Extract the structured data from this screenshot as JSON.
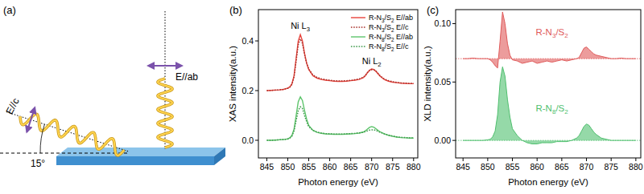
{
  "diagram": {
    "panel_label": "(a)",
    "beam_c": {
      "label": "E//c"
    },
    "beam_ab": {
      "label": "E//ab"
    },
    "angle": {
      "label": "15°"
    }
  },
  "chart_data": [
    {
      "type": "line",
      "title": "(b)",
      "xlabel": "Photon energy (eV)",
      "ylabel": "XAS intensity(a.u.)",
      "xlim": [
        843,
        881
      ],
      "ylim": [
        -0.071,
        0.526
      ],
      "xticks": [
        845,
        850,
        855,
        860,
        865,
        870,
        875,
        880
      ],
      "yticks": [
        {
          "value": 0,
          "label": "0.0"
        },
        0.2,
        0.4
      ],
      "grid": false,
      "legend": "upper right",
      "annotations": [
        {
          "text": "Ni L3",
          "x": 853,
          "y": 0.45
        },
        {
          "text": "Ni L2",
          "x": 870,
          "y": 0.305
        }
      ],
      "x": [
        845,
        846,
        847,
        848,
        849,
        850,
        850.5,
        851,
        851.5,
        852,
        852.5,
        853,
        853.5,
        854,
        854.5,
        855,
        856,
        857,
        858,
        859,
        860,
        861,
        862,
        863,
        864,
        865,
        866,
        867,
        868,
        868.5,
        869,
        869.5,
        870,
        870.5,
        871,
        871.5,
        872,
        873,
        874,
        875,
        876,
        877,
        878,
        879,
        880
      ],
      "series": [
        {
          "name": "R-N3/S2 E//ab",
          "color": "#e8423a",
          "line_style": "solid",
          "values": [
            0.2,
            0.201,
            0.202,
            0.203,
            0.205,
            0.21,
            0.215,
            0.228,
            0.26,
            0.33,
            0.4,
            0.425,
            0.4,
            0.35,
            0.31,
            0.285,
            0.26,
            0.25,
            0.245,
            0.242,
            0.24,
            0.238,
            0.237,
            0.237,
            0.238,
            0.24,
            0.242,
            0.245,
            0.252,
            0.26,
            0.272,
            0.282,
            0.287,
            0.285,
            0.278,
            0.268,
            0.258,
            0.245,
            0.238,
            0.234,
            0.232,
            0.23,
            0.229,
            0.228,
            0.228
          ]
        },
        {
          "name": "R-N3/S2 E//c",
          "color": "#a8322c",
          "line_style": "dotted",
          "values": [
            0.2,
            0.201,
            0.202,
            0.203,
            0.205,
            0.209,
            0.214,
            0.225,
            0.255,
            0.32,
            0.385,
            0.408,
            0.39,
            0.345,
            0.31,
            0.287,
            0.263,
            0.253,
            0.248,
            0.244,
            0.242,
            0.24,
            0.239,
            0.239,
            0.24,
            0.241,
            0.244,
            0.247,
            0.254,
            0.262,
            0.273,
            0.281,
            0.284,
            0.284,
            0.279,
            0.27,
            0.26,
            0.247,
            0.24,
            0.236,
            0.233,
            0.231,
            0.23,
            0.229,
            0.229
          ]
        },
        {
          "name": "R-N8/S2 E//ab",
          "color": "#5cc46a",
          "line_style": "solid",
          "values": [
            0.0,
            0.0,
            0.001,
            0.002,
            0.003,
            0.006,
            0.01,
            0.02,
            0.045,
            0.1,
            0.155,
            0.175,
            0.16,
            0.12,
            0.085,
            0.06,
            0.04,
            0.032,
            0.028,
            0.026,
            0.025,
            0.024,
            0.024,
            0.024,
            0.025,
            0.026,
            0.027,
            0.029,
            0.033,
            0.038,
            0.045,
            0.052,
            0.055,
            0.053,
            0.047,
            0.04,
            0.034,
            0.026,
            0.02,
            0.016,
            0.013,
            0.011,
            0.01,
            0.009,
            0.009
          ]
        },
        {
          "name": "R-N8/S2 E//c",
          "color": "#3f9a4c",
          "line_style": "dotted",
          "values": [
            0.0,
            0.0,
            0.001,
            0.002,
            0.003,
            0.005,
            0.009,
            0.017,
            0.038,
            0.08,
            0.12,
            0.135,
            0.128,
            0.1,
            0.075,
            0.055,
            0.04,
            0.033,
            0.029,
            0.027,
            0.026,
            0.025,
            0.025,
            0.025,
            0.026,
            0.027,
            0.028,
            0.03,
            0.032,
            0.035,
            0.038,
            0.041,
            0.042,
            0.042,
            0.04,
            0.036,
            0.032,
            0.026,
            0.021,
            0.017,
            0.014,
            0.012,
            0.011,
            0.01,
            0.01
          ]
        }
      ]
    },
    {
      "type": "area",
      "title": "(c)",
      "xlabel": "Photon energy (eV)",
      "ylabel": "XLD intensity(a.u.)",
      "xlim": [
        843.5,
        881
      ],
      "ylim": [
        -0.015,
        0.112
      ],
      "xticks": [
        845,
        850,
        855,
        860,
        865,
        870,
        875,
        880
      ],
      "yticks": [
        {
          "value": 0,
          "label": "0.00"
        },
        0.05,
        {
          "value": 0.1,
          "label": "0.10"
        }
      ],
      "grid": false,
      "annotations": [
        {
          "text": "R-N3/S2",
          "x": 863,
          "y": 0.09,
          "color": "#e05a5a"
        },
        {
          "text": "R-N8/S2",
          "x": 863,
          "y": 0.025,
          "color": "#4fbf6e"
        }
      ],
      "x": [
        845,
        846,
        847,
        848,
        849,
        850,
        850.5,
        851,
        851.5,
        852,
        852.5,
        853,
        853.5,
        854,
        854.5,
        855,
        856,
        857,
        858,
        859,
        860,
        861,
        862,
        863,
        864,
        865,
        866,
        867,
        868,
        868.5,
        869,
        869.5,
        870,
        870.5,
        871,
        871.5,
        872,
        873,
        874,
        875,
        876,
        877,
        878,
        879,
        880
      ],
      "series": [
        {
          "color": "#e05a5a",
          "baseline": 0.07,
          "values": [
            0.07,
            0.07,
            0.0705,
            0.07,
            0.07,
            0.07,
            0.069,
            0.067,
            0.064,
            0.062,
            0.085,
            0.11,
            0.1,
            0.083,
            0.073,
            0.069,
            0.068,
            0.066,
            0.067,
            0.068,
            0.066,
            0.067,
            0.068,
            0.067,
            0.068,
            0.069,
            0.068,
            0.069,
            0.07,
            0.071,
            0.075,
            0.079,
            0.08,
            0.078,
            0.076,
            0.074,
            0.073,
            0.072,
            0.071,
            0.07,
            0.07,
            0.0705,
            0.07,
            0.07,
            0.07
          ]
        },
        {
          "color": "#4fbf6e",
          "baseline": 0,
          "values": [
            0,
            0,
            0,
            0,
            0,
            0.0005,
            0.001,
            0.003,
            0.008,
            0.022,
            0.05,
            0.063,
            0.055,
            0.035,
            0.02,
            0.01,
            0.004,
            0.0,
            -0.002,
            -0.003,
            -0.003,
            -0.002,
            -0.002,
            -0.002,
            -0.001,
            -0.001,
            -0.001,
            0.0,
            0.002,
            0.004,
            0.008,
            0.012,
            0.014,
            0.013,
            0.01,
            0.007,
            0.005,
            0.002,
            0.001,
            0.0,
            0,
            0,
            0,
            0,
            0
          ]
        }
      ]
    }
  ]
}
